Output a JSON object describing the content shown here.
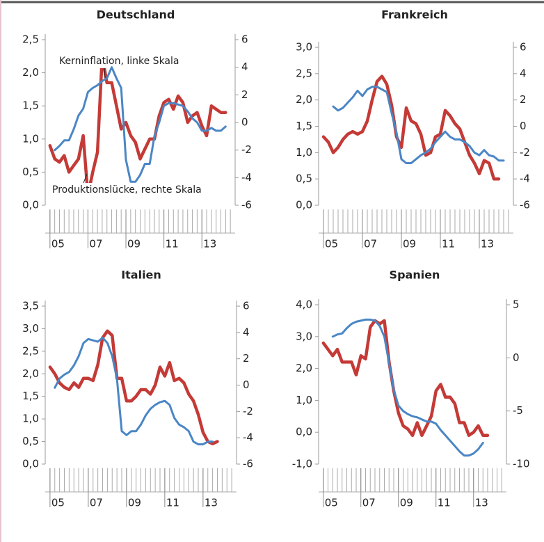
{
  "chart_data": [
    {
      "type": "line",
      "title": "Deutschland",
      "x": [
        2005,
        2005.25,
        2005.5,
        2005.75,
        2006,
        2006.25,
        2006.5,
        2006.75,
        2007,
        2007.25,
        2007.5,
        2007.75,
        2008,
        2008.25,
        2008.5,
        2008.75,
        2009,
        2009.25,
        2009.5,
        2009.75,
        2010,
        2010.25,
        2010.5,
        2010.75,
        2011,
        2011.25,
        2011.5,
        2011.75,
        2012,
        2012.25,
        2012.5,
        2012.75,
        2013,
        2013.25,
        2013.5,
        2013.75,
        2014,
        2014.25
      ],
      "xlim": [
        2004.75,
        2014.75
      ],
      "xticks": [
        {
          "value": 2005,
          "label": "05"
        },
        {
          "value": 2007,
          "label": "07"
        },
        {
          "value": 2009,
          "label": "09"
        },
        {
          "value": 2011,
          "label": "11"
        },
        {
          "value": 2013,
          "label": "13"
        }
      ],
      "ylim": [
        0,
        2.5
      ],
      "yticks": [
        {
          "value": 0,
          "label": "0,0"
        },
        {
          "value": 0.5,
          "label": "0,5"
        },
        {
          "value": 1,
          "label": "1,0"
        },
        {
          "value": 1.5,
          "label": "1,5"
        },
        {
          "value": 2,
          "label": "2,0"
        },
        {
          "value": 2.5,
          "label": "2,5"
        }
      ],
      "y2lim": [
        -6,
        6
      ],
      "y2ticks": [
        -6,
        -4,
        -2,
        0,
        2,
        4,
        6
      ],
      "series": [
        {
          "name": "Kerninflation, linke Skala",
          "color": "#c43a36",
          "values": [
            0.9,
            0.7,
            0.65,
            0.75,
            0.5,
            0.6,
            0.7,
            1.05,
            0.15,
            0.5,
            0.8,
            2.25,
            1.85,
            1.85,
            1.5,
            1.15,
            1.25,
            1.05,
            0.95,
            0.7,
            0.85,
            1.0,
            1.0,
            1.35,
            1.55,
            1.6,
            1.45,
            1.65,
            1.55,
            1.25,
            1.35,
            1.4,
            1.2,
            1.05,
            1.5,
            1.45,
            1.4,
            1.4
          ]
        },
        {
          "name": "Produktionslücke, rechte Skala",
          "color": "#4a86c5",
          "axis": "y2",
          "values": [
            null,
            -2.0,
            -1.7,
            -1.3,
            -1.3,
            -0.5,
            0.5,
            1.0,
            2.2,
            2.5,
            2.7,
            3.0,
            3.2,
            4.0,
            3.2,
            2.5,
            -2.7,
            -4.3,
            -4.3,
            -3.8,
            -3.0,
            -3.0,
            -1.0,
            0.0,
            1.2,
            1.4,
            1.4,
            1.3,
            1.2,
            0.8,
            0.3,
            0.0,
            -0.6,
            -0.6,
            -0.4,
            -0.6,
            -0.6,
            -0.3
          ]
        }
      ]
    },
    {
      "type": "line",
      "title": "Frankreich",
      "x": [
        2005,
        2005.25,
        2005.5,
        2005.75,
        2006,
        2006.25,
        2006.5,
        2006.75,
        2007,
        2007.25,
        2007.5,
        2007.75,
        2008,
        2008.25,
        2008.5,
        2008.75,
        2009,
        2009.25,
        2009.5,
        2009.75,
        2010,
        2010.25,
        2010.5,
        2010.75,
        2011,
        2011.25,
        2011.5,
        2011.75,
        2012,
        2012.25,
        2012.5,
        2012.75,
        2013,
        2013.25,
        2013.5,
        2013.75,
        2014,
        2014.25
      ],
      "xlim": [
        2004.75,
        2014.75
      ],
      "xticks": [
        {
          "value": 2005,
          "label": "05"
        },
        {
          "value": 2007,
          "label": "07"
        },
        {
          "value": 2009,
          "label": "09"
        },
        {
          "value": 2011,
          "label": "11"
        },
        {
          "value": 2013,
          "label": "13"
        }
      ],
      "ylim": [
        0,
        3
      ],
      "yticks": [
        {
          "value": 0,
          "label": "0,0"
        },
        {
          "value": 0.5,
          "label": "0,5"
        },
        {
          "value": 1,
          "label": "1,0"
        },
        {
          "value": 1.5,
          "label": "1,5"
        },
        {
          "value": 2,
          "label": "2,0"
        },
        {
          "value": 2.5,
          "label": "2,5"
        },
        {
          "value": 3,
          "label": "3,0"
        }
      ],
      "y2lim": [
        -6,
        6
      ],
      "y2ticks": [
        -6,
        -4,
        -2,
        0,
        2,
        4,
        6
      ],
      "series": [
        {
          "color": "#c43a36",
          "values": [
            1.3,
            1.2,
            1.0,
            1.1,
            1.25,
            1.35,
            1.4,
            1.35,
            1.4,
            1.6,
            2.0,
            2.35,
            2.45,
            2.3,
            1.9,
            1.3,
            1.1,
            1.85,
            1.6,
            1.55,
            1.35,
            0.95,
            1.0,
            1.3,
            1.35,
            1.8,
            1.7,
            1.55,
            1.45,
            1.2,
            0.95,
            0.8,
            0.6,
            0.85,
            0.8,
            0.5,
            0.5,
            null
          ]
        },
        {
          "color": "#4a86c5",
          "axis": "y2",
          "values": [
            null,
            null,
            1.5,
            1.2,
            1.4,
            1.8,
            2.2,
            2.7,
            2.3,
            2.8,
            3.0,
            3.0,
            2.8,
            2.6,
            1.0,
            -0.5,
            -2.5,
            -2.8,
            -2.8,
            -2.5,
            -2.2,
            -2.0,
            -1.7,
            -1.2,
            -0.8,
            -0.4,
            -0.8,
            -1.0,
            -1.0,
            -1.2,
            -1.5,
            -2.0,
            -2.2,
            -1.8,
            -2.2,
            -2.3,
            -2.6,
            -2.6
          ]
        }
      ]
    },
    {
      "type": "line",
      "title": "Italien",
      "x": [
        2005,
        2005.25,
        2005.5,
        2005.75,
        2006,
        2006.25,
        2006.5,
        2006.75,
        2007,
        2007.25,
        2007.5,
        2007.75,
        2008,
        2008.25,
        2008.5,
        2008.75,
        2009,
        2009.25,
        2009.5,
        2009.75,
        2010,
        2010.25,
        2010.5,
        2010.75,
        2011,
        2011.25,
        2011.5,
        2011.75,
        2012,
        2012.25,
        2012.5,
        2012.75,
        2013,
        2013.25,
        2013.5,
        2013.75,
        2014,
        2014.25
      ],
      "xlim": [
        2004.75,
        2014.75
      ],
      "xticks": [
        {
          "value": 2005,
          "label": "05"
        },
        {
          "value": 2007,
          "label": "07"
        },
        {
          "value": 2009,
          "label": "09"
        },
        {
          "value": 2011,
          "label": "11"
        },
        {
          "value": 2013,
          "label": "13"
        }
      ],
      "ylim": [
        0,
        3.5
      ],
      "yticks": [
        {
          "value": 0,
          "label": "0,0"
        },
        {
          "value": 0.5,
          "label": "0,5"
        },
        {
          "value": 1,
          "label": "1,0"
        },
        {
          "value": 1.5,
          "label": "1,5"
        },
        {
          "value": 2,
          "label": "2,0"
        },
        {
          "value": 2.5,
          "label": "2,5"
        },
        {
          "value": 3,
          "label": "3,0"
        },
        {
          "value": 3.5,
          "label": "3,5"
        }
      ],
      "y2lim": [
        -6,
        6
      ],
      "y2ticks": [
        -6,
        -4,
        -2,
        0,
        2,
        4,
        6
      ],
      "series": [
        {
          "color": "#c43a36",
          "values": [
            2.15,
            2.0,
            1.8,
            1.7,
            1.65,
            1.8,
            1.7,
            1.9,
            1.9,
            1.85,
            2.2,
            2.8,
            2.95,
            2.85,
            1.9,
            1.9,
            1.4,
            1.4,
            1.5,
            1.65,
            1.65,
            1.55,
            1.75,
            2.15,
            1.95,
            2.25,
            1.85,
            1.9,
            1.8,
            1.55,
            1.4,
            1.1,
            0.7,
            0.5,
            0.45,
            0.5,
            null,
            null
          ]
        },
        {
          "color": "#4a86c5",
          "axis": "y2",
          "values": [
            null,
            -0.2,
            0.5,
            0.8,
            1.0,
            1.5,
            2.2,
            3.2,
            3.5,
            3.4,
            3.3,
            3.6,
            3.2,
            2.2,
            0.5,
            -3.5,
            -3.8,
            -3.5,
            -3.5,
            -3.0,
            -2.3,
            -1.8,
            -1.5,
            -1.3,
            -1.2,
            -1.5,
            -2.5,
            -3.0,
            -3.2,
            -3.5,
            -4.3,
            -4.5,
            -4.5,
            -4.3,
            -4.3,
            null,
            null,
            null
          ]
        }
      ]
    },
    {
      "type": "line",
      "title": "Spanien",
      "x": [
        2005,
        2005.25,
        2005.5,
        2005.75,
        2006,
        2006.25,
        2006.5,
        2006.75,
        2007,
        2007.25,
        2007.5,
        2007.75,
        2008,
        2008.25,
        2008.5,
        2008.75,
        2009,
        2009.25,
        2009.5,
        2009.75,
        2010,
        2010.25,
        2010.5,
        2010.75,
        2011,
        2011.25,
        2011.5,
        2011.75,
        2012,
        2012.25,
        2012.5,
        2012.75,
        2013,
        2013.25,
        2013.5,
        2013.75,
        2014,
        2014.25
      ],
      "xlim": [
        2004.75,
        2014.75
      ],
      "xticks": [
        {
          "value": 2005,
          "label": "05"
        },
        {
          "value": 2007,
          "label": "07"
        },
        {
          "value": 2009,
          "label": "09"
        },
        {
          "value": 2011,
          "label": "11"
        },
        {
          "value": 2013,
          "label": "13"
        }
      ],
      "ylim": [
        -1,
        4
      ],
      "yticks": [
        {
          "value": -1,
          "label": "-1,0"
        },
        {
          "value": 0,
          "label": "0,0"
        },
        {
          "value": 1,
          "label": "1,0"
        },
        {
          "value": 2,
          "label": "2,0"
        },
        {
          "value": 3,
          "label": "3,0"
        },
        {
          "value": 4,
          "label": "4,0"
        }
      ],
      "y2lim": [
        -10,
        5
      ],
      "y2ticks": [
        -10,
        -5,
        0,
        5
      ],
      "series": [
        {
          "color": "#c43a36",
          "values": [
            2.8,
            2.6,
            2.4,
            2.6,
            2.2,
            2.2,
            2.2,
            1.8,
            2.4,
            2.3,
            3.3,
            3.5,
            3.4,
            3.5,
            2.2,
            1.3,
            0.6,
            0.2,
            0.1,
            -0.1,
            0.3,
            -0.1,
            0.2,
            0.5,
            1.3,
            1.5,
            1.1,
            1.1,
            0.9,
            0.3,
            0.3,
            -0.1,
            0.0,
            0.2,
            -0.1,
            -0.1,
            null,
            null
          ]
        },
        {
          "color": "#4a86c5",
          "axis": "y2",
          "values": [
            null,
            null,
            2.0,
            2.2,
            2.3,
            2.8,
            3.2,
            3.4,
            3.5,
            3.6,
            3.6,
            3.5,
            3.0,
            2.0,
            -0.5,
            -3.0,
            -4.5,
            -5.0,
            -5.3,
            -5.5,
            -5.6,
            -5.8,
            -6.0,
            -6.0,
            -6.2,
            -6.8,
            -7.3,
            -7.8,
            -8.3,
            -8.8,
            -9.2,
            -9.2,
            -9.0,
            -8.6,
            -8.0,
            null,
            null,
            null
          ]
        }
      ]
    }
  ]
}
